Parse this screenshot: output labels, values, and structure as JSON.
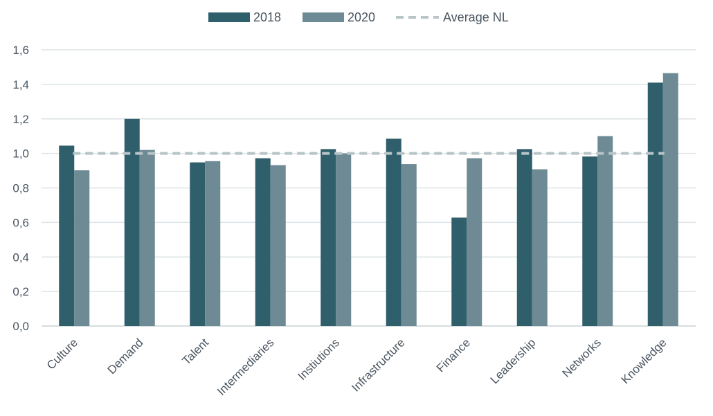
{
  "chart_data": {
    "type": "bar",
    "categories": [
      "Culture",
      "Demand",
      "Talent",
      "Intermediaries",
      "Instiutions",
      "Infrastructure",
      "Finance",
      "Leadership",
      "Networks",
      "Knowledge"
    ],
    "series": [
      {
        "name": "2018",
        "color": "#2e5f6b",
        "values": [
          1.045,
          1.2,
          0.948,
          0.972,
          1.025,
          1.085,
          0.628,
          1.025,
          0.982,
          1.41
        ]
      },
      {
        "name": "2020",
        "color": "#6e8a94",
        "values": [
          0.902,
          1.02,
          0.955,
          0.932,
          1.0,
          0.938,
          0.972,
          0.908,
          1.1,
          1.465
        ]
      }
    ],
    "reference_line": {
      "name": "Average NL",
      "value": 1.0,
      "color": "#b8c4c8",
      "style": "dashed"
    },
    "ylim": [
      0,
      1.6
    ],
    "yticks": [
      "0,0",
      "0,2",
      "0,4",
      "0,6",
      "0,8",
      "1,0",
      "1,2",
      "1,4",
      "1,6"
    ],
    "title": "",
    "xlabel": "",
    "ylabel": "",
    "grid": true,
    "legend_position": "top-center"
  }
}
